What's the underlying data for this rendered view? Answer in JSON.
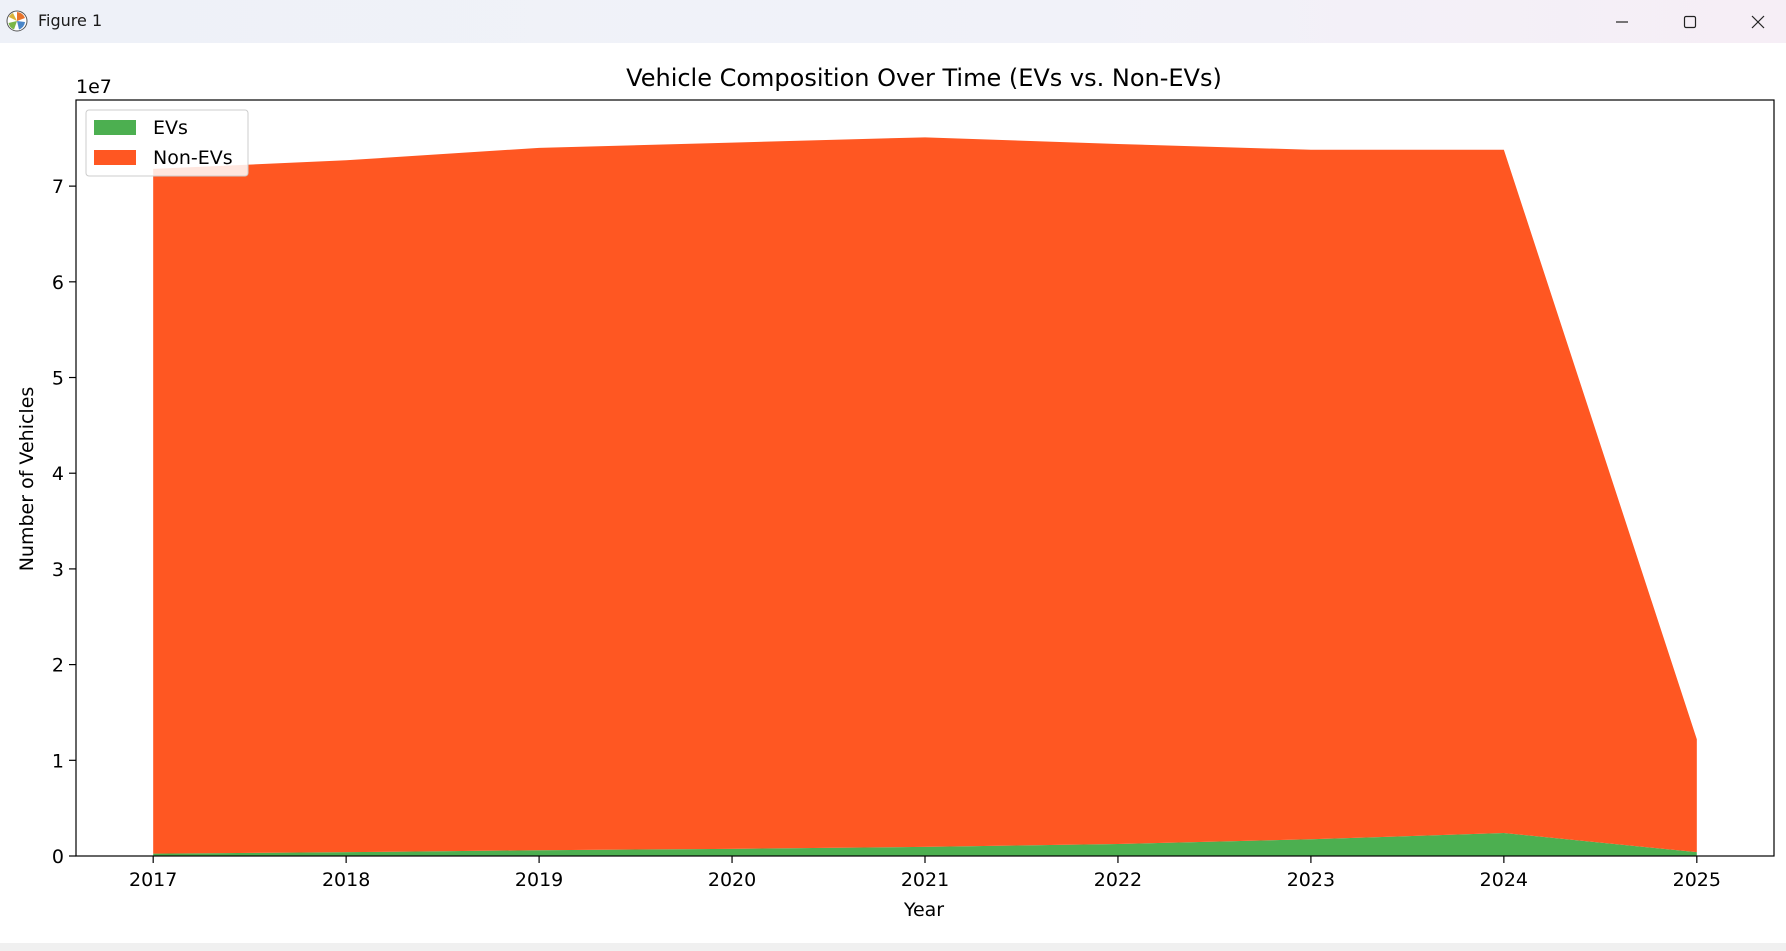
{
  "window": {
    "title": "Figure 1",
    "icons": {
      "app": "matplotlib-icon",
      "minimize": "minimize-icon",
      "maximize": "maximize-icon",
      "close": "close-icon"
    }
  },
  "chart_data": {
    "type": "area",
    "stacked": true,
    "title": "Vehicle Composition Over Time (EVs vs. Non-EVs)",
    "xlabel": "Year",
    "ylabel": "Number of Vehicles",
    "y_offset_label": "1e7",
    "x": [
      2017,
      2018,
      2019,
      2020,
      2021,
      2022,
      2023,
      2024,
      2025
    ],
    "xticks": [
      "2017",
      "2018",
      "2019",
      "2020",
      "2021",
      "2022",
      "2023",
      "2024",
      "2025"
    ],
    "yticks": [
      "0",
      "1",
      "2",
      "3",
      "4",
      "5",
      "6",
      "7"
    ],
    "ytick_values": [
      0,
      1,
      2,
      3,
      4,
      5,
      6,
      7
    ],
    "y_scale": 10000000,
    "xlim": [
      2016.6,
      2025.4
    ],
    "ylim": [
      0,
      79000000
    ],
    "legend_position": "upper-left",
    "series": [
      {
        "name": "EVs",
        "color": "#4caf50",
        "values": [
          250000,
          400000,
          600000,
          750000,
          950000,
          1250000,
          1750000,
          2400000,
          400000
        ]
      },
      {
        "name": "Non-EVs",
        "color": "#ff5722",
        "values": [
          71550000,
          72300000,
          73400000,
          73800000,
          74150000,
          73150000,
          72050000,
          71400000,
          11800000
        ]
      }
    ]
  }
}
